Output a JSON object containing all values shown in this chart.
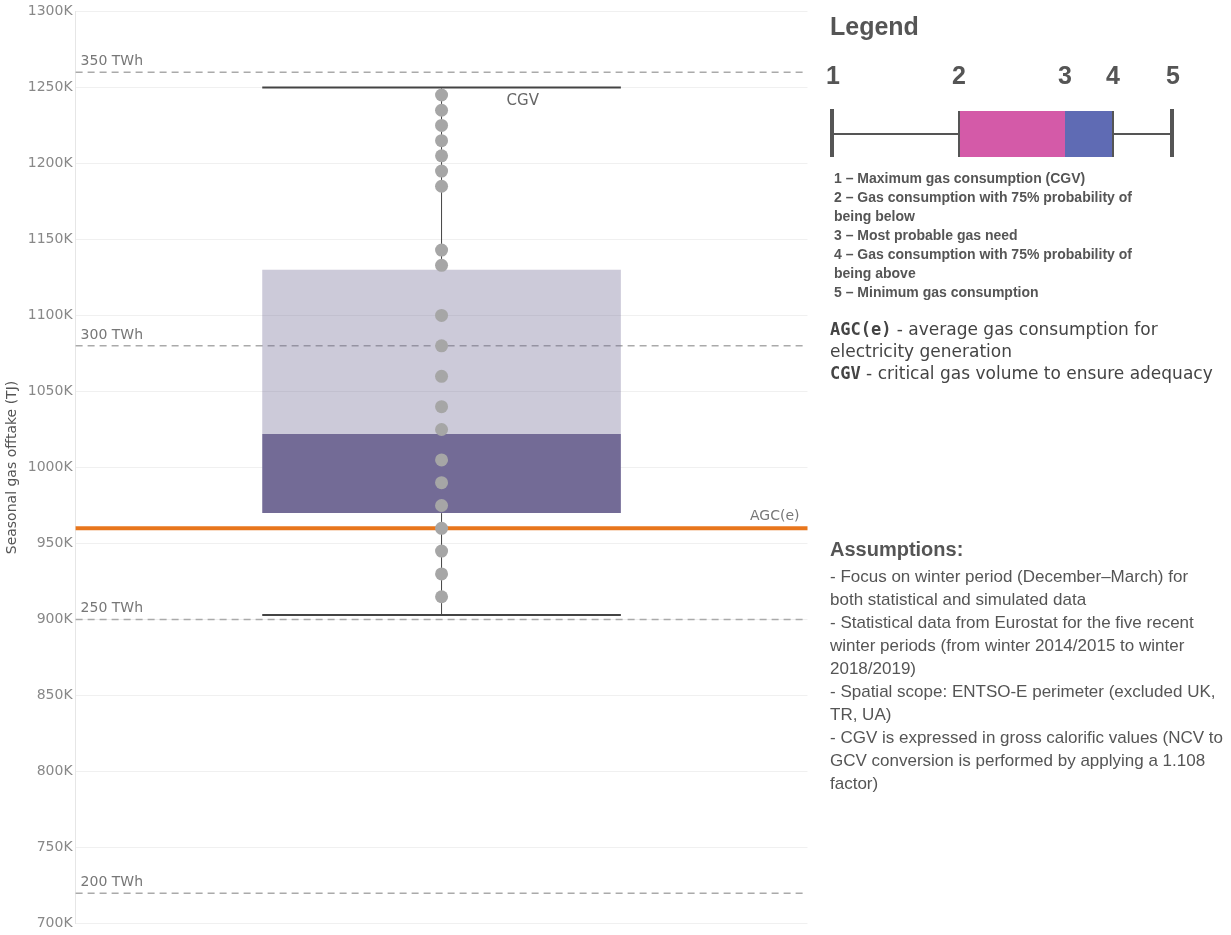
{
  "chart_data": [
    {
      "type": "box",
      "ylabel": "Seasonal gas offtake (TJ)",
      "categories": [
        null
      ],
      "series": [
        {
          "type": "box",
          "color": "#736b96",
          "boxes": [
            {
              "low": 903000,
              "q1": 970000,
              "median": 1022000,
              "q3": 1130000,
              "high": 1250000
            }
          ]
        },
        {
          "type": "scatter",
          "color": "#a6a6a6",
          "x": [
            null,
            null,
            null,
            null,
            null,
            null,
            null,
            null,
            null,
            null,
            null,
            null,
            null,
            null,
            null,
            null,
            null,
            null,
            null,
            null,
            null
          ],
          "values": [
            1245000,
            1235000,
            1225000,
            1215000,
            1205000,
            1195000,
            1185000,
            1143000,
            1133000,
            1100000,
            1080000,
            1060000,
            1040000,
            1025000,
            1005000,
            990000,
            975000,
            960000,
            945000,
            930000,
            915000
          ]
        }
      ],
      "ylim": [
        700000,
        1300000
      ],
      "yticks": [
        {
          "value": 700000,
          "label": "700K"
        },
        {
          "value": 750000,
          "label": "750K"
        },
        {
          "value": 800000,
          "label": "800K"
        },
        {
          "value": 850000,
          "label": "850K"
        },
        {
          "value": 900000,
          "label": "900K"
        },
        {
          "value": 950000,
          "label": "950K"
        },
        {
          "value": 1000000,
          "label": "1000K"
        },
        {
          "value": 1050000,
          "label": "1050K"
        },
        {
          "value": 1100000,
          "label": "1100K"
        },
        {
          "value": 1150000,
          "label": "1150K"
        },
        {
          "value": 1200000,
          "label": "1200K"
        },
        {
          "value": 1250000,
          "label": "1250K"
        },
        {
          "value": 1300000,
          "label": "1300K"
        }
      ],
      "ref_lines": [
        {
          "axis": "y",
          "value": 1260000,
          "label": "350 TWh",
          "color": "#aaaaaa",
          "line_style": "dashed"
        },
        {
          "axis": "y",
          "value": 1080000,
          "label": "300 TWh",
          "color": "#aaaaaa",
          "line_style": "dashed"
        },
        {
          "axis": "y",
          "value": 900000,
          "label": "250 TWh",
          "color": "#aaaaaa",
          "line_style": "dashed"
        },
        {
          "axis": "y",
          "value": 720000,
          "label": "200 TWh",
          "color": "#aaaaaa",
          "line_style": "dashed"
        },
        {
          "axis": "y",
          "value": 960000,
          "label": "AGC(e)",
          "color": "#e8761c",
          "line_style": "solid"
        }
      ],
      "annotations": [
        {
          "text": "CGV",
          "y": 1250000
        }
      ],
      "grid": "y",
      "tick_labels": "y",
      "legend": false
    },
    {
      "type": "other",
      "title": "Legend",
      "categories": [
        "1",
        "2",
        "3",
        "4",
        "5"
      ],
      "annotations": [
        "1 – Maximum gas consumption (CGV)",
        "2 – Gas consumption with 75% probability of being below",
        "3 – Most probable gas need",
        "4 – Gas consumption with 75% probability of being above",
        "5 – Minimum gas consumption",
        "AGC(e) - average gas consumption for electricity generation",
        "CGV - critical gas volume to ensure adequacy"
      ]
    },
    {
      "type": "other",
      "title": "Assumptions:",
      "annotations": [
        "- Focus on winter period (December–March) for both statistical and simulated data",
        "- Statistical data from Eurostat for the five recent winter periods (from winter 2014/2015 to winter 2018/2019)",
        "- Spatial scope: ENTSO-E perimeter (excluded UK, TR, UA)",
        "- CGV is expressed in gross calorific values (NCV to GCV conversion is performed by applying a 1.108 factor)"
      ]
    }
  ]
}
